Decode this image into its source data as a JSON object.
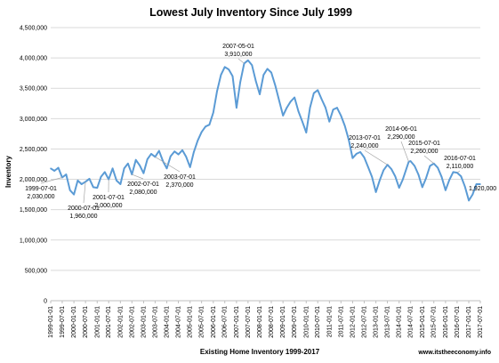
{
  "chart_data": {
    "type": "line",
    "title": "Lowest July Inventory Since July 1999",
    "xlabel": "Existing Home Inventory 1999-2017",
    "ylabel": "Inventory",
    "ylim": [
      0,
      4500000
    ],
    "yticks": [
      {
        "value": 0,
        "label": "0"
      },
      {
        "value": 500000,
        "label": "500,000"
      },
      {
        "value": 1000000,
        "label": "1,000,000"
      },
      {
        "value": 1500000,
        "label": "1,500,000"
      },
      {
        "value": 2000000,
        "label": "2,000,000"
      },
      {
        "value": 2500000,
        "label": "2,500,000"
      },
      {
        "value": 3000000,
        "label": "3,000,000"
      },
      {
        "value": 3500000,
        "label": "3,500,000"
      },
      {
        "value": 4000000,
        "label": "4,000,000"
      },
      {
        "value": 4500000,
        "label": "4,500,000"
      }
    ],
    "xlabels": [
      "1999-01-01",
      "1999-07-01",
      "2000-01-01",
      "2000-07-01",
      "2001-01-01",
      "2001-07-01",
      "2002-01-01",
      "2002-07-01",
      "2003-01-01",
      "2003-07-01",
      "2004-01-01",
      "2004-07-01",
      "2005-01-01",
      "2005-07-01",
      "2006-01-01",
      "2006-07-01",
      "2007-01-01",
      "2007-07-01",
      "2008-01-01",
      "2008-07-01",
      "2009-01-01",
      "2009-07-01",
      "2010-01-01",
      "2010-07-01",
      "2011-01-01",
      "2011-07-01",
      "2012-01-01",
      "2012-07-01",
      "2013-01-01",
      "2013-07-01",
      "2014-01-01",
      "2014-07-01",
      "2015-01-01",
      "2015-07-01",
      "2016-01-01",
      "2016-07-01",
      "2017-01-01",
      "2017-07-01"
    ],
    "grid": true,
    "series": [
      {
        "color": "#5b9bd5",
        "points": [
          [
            "1999-01-01",
            2180000
          ],
          [
            "1999-03-01",
            2140000
          ],
          [
            "1999-05-01",
            2190000
          ],
          [
            "1999-07-01",
            2030000
          ],
          [
            "1999-09-01",
            2080000
          ],
          [
            "1999-11-01",
            1820000
          ],
          [
            "2000-01-01",
            1750000
          ],
          [
            "2000-03-01",
            1980000
          ],
          [
            "2000-05-01",
            1920000
          ],
          [
            "2000-07-01",
            1960000
          ],
          [
            "2000-09-01",
            2010000
          ],
          [
            "2000-11-01",
            1870000
          ],
          [
            "2001-01-01",
            1860000
          ],
          [
            "2001-03-01",
            2040000
          ],
          [
            "2001-05-01",
            2120000
          ],
          [
            "2001-07-01",
            2000000
          ],
          [
            "2001-09-01",
            2180000
          ],
          [
            "2001-11-01",
            1980000
          ],
          [
            "2002-01-01",
            1920000
          ],
          [
            "2002-03-01",
            2180000
          ],
          [
            "2002-05-01",
            2260000
          ],
          [
            "2002-07-01",
            2080000
          ],
          [
            "2002-09-01",
            2320000
          ],
          [
            "2002-11-01",
            2230000
          ],
          [
            "2003-01-01",
            2100000
          ],
          [
            "2003-03-01",
            2330000
          ],
          [
            "2003-05-01",
            2420000
          ],
          [
            "2003-07-01",
            2370000
          ],
          [
            "2003-09-01",
            2470000
          ],
          [
            "2003-11-01",
            2300000
          ],
          [
            "2004-01-01",
            2180000
          ],
          [
            "2004-03-01",
            2380000
          ],
          [
            "2004-05-01",
            2460000
          ],
          [
            "2004-07-01",
            2410000
          ],
          [
            "2004-09-01",
            2480000
          ],
          [
            "2004-11-01",
            2370000
          ],
          [
            "2005-01-01",
            2200000
          ],
          [
            "2005-03-01",
            2450000
          ],
          [
            "2005-05-01",
            2640000
          ],
          [
            "2005-07-01",
            2780000
          ],
          [
            "2005-09-01",
            2870000
          ],
          [
            "2005-11-01",
            2900000
          ],
          [
            "2006-01-01",
            3100000
          ],
          [
            "2006-03-01",
            3450000
          ],
          [
            "2006-05-01",
            3720000
          ],
          [
            "2006-07-01",
            3850000
          ],
          [
            "2006-09-01",
            3810000
          ],
          [
            "2006-11-01",
            3700000
          ],
          [
            "2007-01-01",
            3180000
          ],
          [
            "2007-03-01",
            3600000
          ],
          [
            "2007-05-01",
            3910000
          ],
          [
            "2007-07-01",
            3960000
          ],
          [
            "2007-09-01",
            3880000
          ],
          [
            "2007-11-01",
            3620000
          ],
          [
            "2008-01-01",
            3400000
          ],
          [
            "2008-03-01",
            3720000
          ],
          [
            "2008-05-01",
            3820000
          ],
          [
            "2008-07-01",
            3760000
          ],
          [
            "2008-09-01",
            3550000
          ],
          [
            "2008-11-01",
            3300000
          ],
          [
            "2009-01-01",
            3050000
          ],
          [
            "2009-03-01",
            3180000
          ],
          [
            "2009-05-01",
            3280000
          ],
          [
            "2009-07-01",
            3350000
          ],
          [
            "2009-09-01",
            3120000
          ],
          [
            "2009-11-01",
            2950000
          ],
          [
            "2010-01-01",
            2770000
          ],
          [
            "2010-03-01",
            3180000
          ],
          [
            "2010-05-01",
            3420000
          ],
          [
            "2010-07-01",
            3470000
          ],
          [
            "2010-09-01",
            3320000
          ],
          [
            "2010-11-01",
            3180000
          ],
          [
            "2011-01-01",
            2950000
          ],
          [
            "2011-03-01",
            3150000
          ],
          [
            "2011-05-01",
            3180000
          ],
          [
            "2011-07-01",
            3050000
          ],
          [
            "2011-09-01",
            2880000
          ],
          [
            "2011-11-01",
            2650000
          ],
          [
            "2012-01-01",
            2350000
          ],
          [
            "2012-03-01",
            2420000
          ],
          [
            "2012-05-01",
            2450000
          ],
          [
            "2012-07-01",
            2360000
          ],
          [
            "2012-09-01",
            2200000
          ],
          [
            "2012-11-01",
            2040000
          ],
          [
            "2013-01-01",
            1790000
          ],
          [
            "2013-03-01",
            1980000
          ],
          [
            "2013-05-01",
            2150000
          ],
          [
            "2013-07-01",
            2240000
          ],
          [
            "2013-09-01",
            2170000
          ],
          [
            "2013-11-01",
            2050000
          ],
          [
            "2014-01-01",
            1860000
          ],
          [
            "2014-03-01",
            2000000
          ],
          [
            "2014-06-01",
            2290000
          ],
          [
            "2014-07-01",
            2300000
          ],
          [
            "2014-09-01",
            2220000
          ],
          [
            "2014-11-01",
            2080000
          ],
          [
            "2015-01-01",
            1870000
          ],
          [
            "2015-03-01",
            2020000
          ],
          [
            "2015-05-01",
            2220000
          ],
          [
            "2015-07-01",
            2260000
          ],
          [
            "2015-09-01",
            2190000
          ],
          [
            "2015-11-01",
            2040000
          ],
          [
            "2016-01-01",
            1820000
          ],
          [
            "2016-03-01",
            1990000
          ],
          [
            "2016-05-01",
            2120000
          ],
          [
            "2016-07-01",
            2110000
          ],
          [
            "2016-09-01",
            2050000
          ],
          [
            "2016-11-01",
            1880000
          ],
          [
            "2017-01-01",
            1650000
          ],
          [
            "2017-03-01",
            1750000
          ],
          [
            "2017-05-01",
            1920000
          ],
          [
            "2017-07-01",
            1920000
          ]
        ]
      }
    ],
    "annotations": [
      {
        "lines": [
          "1999-07-01",
          "2,030,000"
        ],
        "x": "1999-07-01",
        "y": 2030000
      },
      {
        "lines": [
          "2000-07-01",
          "1,960,000"
        ],
        "x": "2000-07-01",
        "y": 1960000
      },
      {
        "lines": [
          "2001-07-01",
          "2,000,000"
        ],
        "x": "2001-07-01",
        "y": 2000000
      },
      {
        "lines": [
          "2002-07-01",
          "2,080,000"
        ],
        "x": "2002-07-01",
        "y": 2080000
      },
      {
        "lines": [
          "2003-07-01",
          "2,370,000"
        ],
        "x": "2003-07-01",
        "y": 2370000
      },
      {
        "lines": [
          "2007-05-01",
          "3,910,000"
        ],
        "x": "2007-05-01",
        "y": 3910000
      },
      {
        "lines": [
          "2013-07-01",
          "2,240,000"
        ],
        "x": "2013-07-01",
        "y": 2240000
      },
      {
        "lines": [
          "2014-06-01",
          "2,290,000"
        ],
        "x": "2014-06-01",
        "y": 2290000
      },
      {
        "lines": [
          "2015-07-01",
          "2,260,000"
        ],
        "x": "2015-07-01",
        "y": 2260000
      },
      {
        "lines": [
          "2016-07-01",
          "2,110,000"
        ],
        "x": "2016-07-01",
        "y": 2110000
      },
      {
        "lines": [
          "1,920,000"
        ],
        "x": "2017-07-01",
        "y": 1920000
      }
    ],
    "source_text": "www.itstheeconomy.info"
  }
}
